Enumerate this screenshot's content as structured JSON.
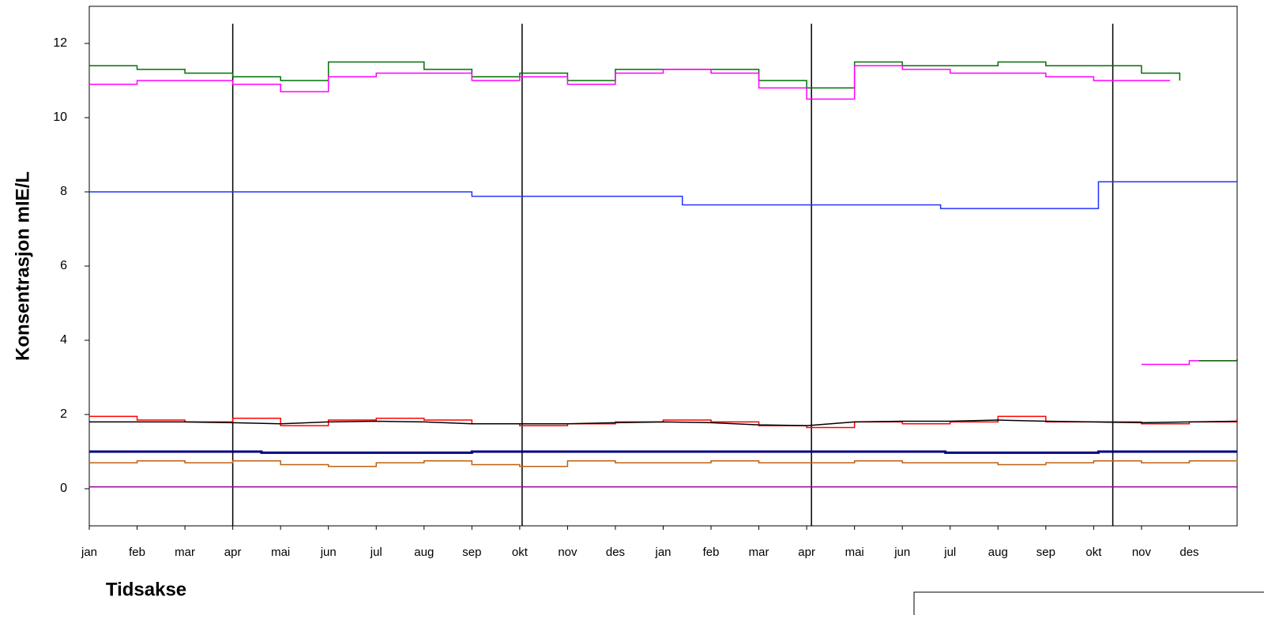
{
  "chart_data": {
    "type": "line",
    "y_label": "Konsentrasjon mIE/L",
    "x_label": "Tidsakse",
    "xlim": [
      0,
      24
    ],
    "ylim": [
      -1,
      13
    ],
    "yticks": [
      0,
      2,
      4,
      6,
      8,
      10,
      12
    ],
    "xticks": [
      {
        "value": 0,
        "label": "jan"
      },
      {
        "value": 1,
        "label": "feb"
      },
      {
        "value": 2,
        "label": "mar"
      },
      {
        "value": 3,
        "label": "apr"
      },
      {
        "value": 4,
        "label": "mai"
      },
      {
        "value": 5,
        "label": "jun"
      },
      {
        "value": 6,
        "label": "jul"
      },
      {
        "value": 7,
        "label": "aug"
      },
      {
        "value": 8,
        "label": "sep"
      },
      {
        "value": 9,
        "label": "okt"
      },
      {
        "value": 10,
        "label": "nov"
      },
      {
        "value": 11,
        "label": "des"
      },
      {
        "value": 12,
        "label": "jan"
      },
      {
        "value": 13,
        "label": "feb"
      },
      {
        "value": 14,
        "label": "mar"
      },
      {
        "value": 15,
        "label": "apr"
      },
      {
        "value": 16,
        "label": "mai"
      },
      {
        "value": 17,
        "label": "jun"
      },
      {
        "value": 18,
        "label": "jul"
      },
      {
        "value": 19,
        "label": "aug"
      },
      {
        "value": 20,
        "label": "sep"
      },
      {
        "value": 21,
        "label": "okt"
      },
      {
        "value": 22,
        "label": "nov"
      },
      {
        "value": 23,
        "label": "des"
      }
    ],
    "vertical_lines": [
      3,
      9.05,
      15.1,
      21.4
    ],
    "series": [
      {
        "color": "#007000",
        "step": true,
        "width": 1.5,
        "x": [
          0,
          1,
          2,
          3,
          4,
          5,
          6,
          7,
          8,
          9,
          10,
          11,
          12,
          13,
          14,
          15,
          16,
          17,
          18,
          19,
          20,
          21,
          22,
          22.8
        ],
        "values": [
          11.4,
          11.3,
          11.2,
          11.1,
          11.0,
          11.5,
          11.5,
          11.3,
          11.1,
          11.2,
          11.0,
          11.3,
          11.3,
          11.3,
          11.0,
          10.8,
          11.5,
          11.4,
          11.4,
          11.5,
          11.4,
          11.4,
          11.2,
          11.0
        ]
      },
      {
        "color": "#ff00ff",
        "step": true,
        "width": 1.5,
        "x": [
          0,
          1,
          2,
          3,
          4,
          5,
          6,
          7,
          8,
          9,
          10,
          11,
          12,
          13,
          14,
          15,
          16,
          17,
          18,
          19,
          20,
          21,
          22,
          22.6
        ],
        "values": [
          10.9,
          11.0,
          11.0,
          10.9,
          10.7,
          11.1,
          11.2,
          11.2,
          11.0,
          11.1,
          10.9,
          11.2,
          11.3,
          11.2,
          10.8,
          10.5,
          11.4,
          11.3,
          11.2,
          11.2,
          11.1,
          11.0,
          11.0,
          11.0
        ]
      },
      {
        "color": "#ff00ff",
        "step": true,
        "width": 1.5,
        "x": [
          22,
          23,
          24
        ],
        "values": [
          3.35,
          3.45,
          3.55
        ]
      },
      {
        "color": "#007000",
        "step": true,
        "width": 1.5,
        "x": [
          23.2,
          24
        ],
        "values": [
          3.45,
          3.5
        ]
      },
      {
        "color": "#2233ff",
        "step": true,
        "width": 1.5,
        "x": [
          0,
          8,
          12.4,
          17.8,
          21.1,
          24
        ],
        "values": [
          8.0,
          7.88,
          7.65,
          7.55,
          8.27,
          8.27
        ]
      },
      {
        "color": "#ff0000",
        "step": true,
        "width": 1.5,
        "x": [
          0,
          1,
          2,
          3,
          4,
          5,
          6,
          7,
          8,
          9,
          10,
          11,
          12,
          13,
          14,
          15,
          16,
          17,
          18,
          19,
          20,
          21,
          22,
          23,
          24
        ],
        "values": [
          1.95,
          1.85,
          1.8,
          1.9,
          1.7,
          1.85,
          1.9,
          1.85,
          1.75,
          1.7,
          1.75,
          1.8,
          1.85,
          1.8,
          1.7,
          1.65,
          1.8,
          1.75,
          1.8,
          1.95,
          1.8,
          1.8,
          1.75,
          1.8,
          1.9
        ]
      },
      {
        "color": "#000000",
        "step": false,
        "width": 1.5,
        "x": [
          0,
          1,
          2,
          3,
          4,
          5,
          6,
          7,
          8,
          9,
          10,
          11,
          12,
          13,
          14,
          15,
          16,
          17,
          18,
          19,
          20,
          21,
          22,
          23,
          24
        ],
        "values": [
          1.8,
          1.8,
          1.8,
          1.78,
          1.75,
          1.8,
          1.82,
          1.8,
          1.75,
          1.75,
          1.75,
          1.78,
          1.8,
          1.78,
          1.72,
          1.7,
          1.8,
          1.82,
          1.82,
          1.85,
          1.82,
          1.8,
          1.78,
          1.8,
          1.82
        ]
      },
      {
        "color": "#000080",
        "step": true,
        "width": 3,
        "x": [
          0,
          3.6,
          8,
          15,
          17.9,
          21.1,
          24
        ],
        "values": [
          1.0,
          0.97,
          1.0,
          1.0,
          0.97,
          1.0,
          1.0
        ]
      },
      {
        "color": "#c06010",
        "step": true,
        "width": 1.5,
        "x": [
          0,
          1,
          2,
          3,
          4,
          5,
          6,
          7,
          8,
          9,
          10,
          11,
          12,
          13,
          14,
          15,
          16,
          17,
          18,
          19,
          20,
          21,
          22,
          23,
          24
        ],
        "values": [
          0.7,
          0.75,
          0.7,
          0.75,
          0.65,
          0.6,
          0.7,
          0.75,
          0.65,
          0.6,
          0.75,
          0.7,
          0.7,
          0.75,
          0.7,
          0.7,
          0.75,
          0.7,
          0.7,
          0.65,
          0.7,
          0.75,
          0.7,
          0.75,
          0.7
        ]
      },
      {
        "color": "#990099",
        "step": false,
        "width": 1.5,
        "x": [
          0,
          24
        ],
        "values": [
          0.05,
          0.05
        ]
      }
    ]
  }
}
